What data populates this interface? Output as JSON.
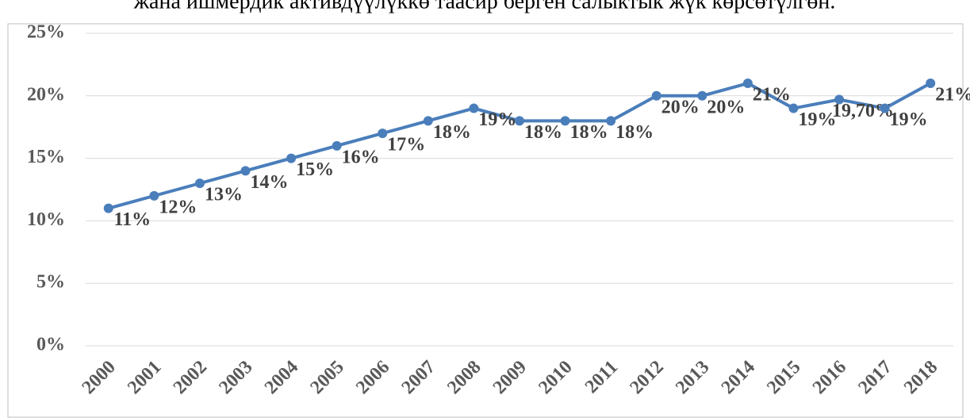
{
  "chart_data": {
    "type": "line",
    "title": "жана ишмердик активдүүлүккө таасир берген салыктык жүк көрсөтүлгөн.",
    "categories": [
      "2000",
      "2001",
      "2002",
      "2003",
      "2004",
      "2005",
      "2006",
      "2007",
      "2008",
      "2009",
      "2010",
      "2011",
      "2012",
      "2013",
      "2014",
      "2015",
      "2016",
      "2017",
      "2018"
    ],
    "series": [
      {
        "name": "",
        "color": "#4a7ebb",
        "values": [
          11,
          12,
          13,
          14,
          15,
          16,
          17,
          18,
          19,
          18,
          18,
          18,
          20,
          20,
          21,
          19,
          19.7,
          19,
          21
        ],
        "value_labels": [
          "11%",
          "12%",
          "13%",
          "14%",
          "15%",
          "16%",
          "17%",
          "18%",
          "19%",
          "18%",
          "18%",
          "18%",
          "20%",
          "20%",
          "21%",
          "19%",
          "19,70%",
          "19%",
          "21%"
        ]
      }
    ],
    "ylim": [
      0,
      25
    ],
    "yticks": [
      {
        "value": 0,
        "label": "0%"
      },
      {
        "value": 5,
        "label": "5%"
      },
      {
        "value": 10,
        "label": "10%"
      },
      {
        "value": 15,
        "label": "15%"
      },
      {
        "value": 20,
        "label": "20%"
      },
      {
        "value": 25,
        "label": "25%"
      }
    ],
    "grid": true
  }
}
